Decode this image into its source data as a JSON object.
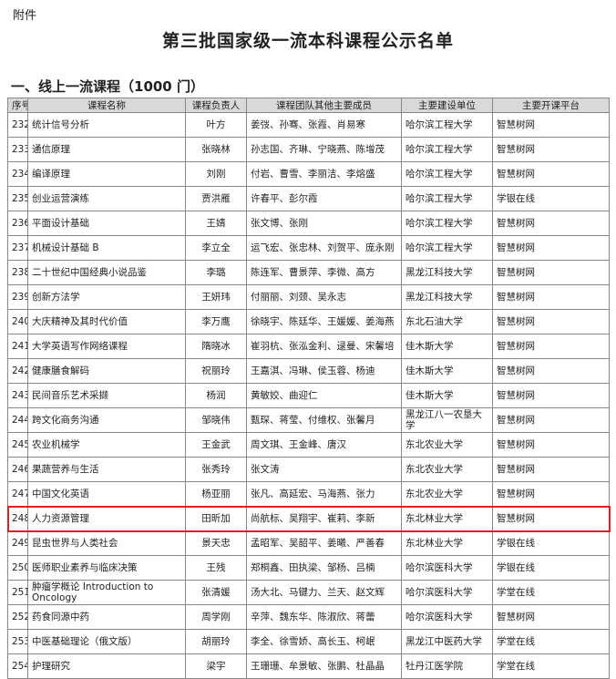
{
  "header": {
    "attachment": "附件",
    "title": "第三批国家级一流本科课程公示名单",
    "section": "一、线上一流课程（1000 门）"
  },
  "table": {
    "columns": [
      "序号",
      "课程名称",
      "课程负责人",
      "课程团队其他主要成员",
      "主要建设单位",
      "主要开课平台"
    ],
    "rows": [
      [
        "232",
        "统计信号分析",
        "叶方",
        "姜弢、孙骞、张霞、肖易寒",
        "哈尔滨工程大学",
        "智慧树网"
      ],
      [
        "233",
        "通信原理",
        "张晓林",
        "孙志国、齐琳、宁晓燕、陈增茂",
        "哈尔滨工程大学",
        "智慧树网"
      ],
      [
        "234",
        "编译原理",
        "刘刚",
        "付岩、曹雪、李丽洁、李熔盛",
        "哈尔滨工程大学",
        "智慧树网"
      ],
      [
        "235",
        "创业运营演练",
        "贾洪雁",
        "许春平、彭尔霞",
        "哈尔滨工程大学",
        "学银在线"
      ],
      [
        "236",
        "平面设计基础",
        "王婧",
        "张文博、张刚",
        "哈尔滨工程大学",
        "智慧树网"
      ],
      [
        "237",
        "机械设计基础 B",
        "李立全",
        "运飞宏、张忠林、刘贺平、庞永刚",
        "哈尔滨工程大学",
        "智慧树网"
      ],
      [
        "238",
        "二十世纪中国经典小说品鉴",
        "李璐",
        "陈连军、曹景萍、李微、高方",
        "黑龙江科技大学",
        "智慧树网"
      ],
      [
        "239",
        "创新方法学",
        "王妍玮",
        "付丽丽、刘颈、吴永志",
        "黑龙江科技大学",
        "智慧树网"
      ],
      [
        "240",
        "大庆精神及其时代价值",
        "李万鹰",
        "徐晓宇、陈廷华、王媛媛、姜海燕",
        "东北石油大学",
        "智慧树网"
      ],
      [
        "241",
        "大学英语写作网络课程",
        "隋晓冰",
        "崔羽杭、张泓金利、逯曼、宋馨培",
        "佳木斯大学",
        "智慧树网"
      ],
      [
        "242",
        "健康膳食解码",
        "祝丽玲",
        "王嘉淇、冯琳、侯玉蓉、杨迪",
        "佳木斯大学",
        "智慧树网"
      ],
      [
        "243",
        "民间音乐艺术采撷",
        "杨润",
        "黄敏姣、曲迎仁",
        "佳木斯大学",
        "智慧树网"
      ],
      [
        "244",
        "跨文化商务沟通",
        "邹晓伟",
        "甄琛、蒋莹、付维权、张馨月",
        "黑龙江八一农垦大学",
        "智慧树网"
      ],
      [
        "245",
        "农业机械学",
        "王金武",
        "周文琪、王金峰、唐汉",
        "东北农业大学",
        "智慧树网"
      ],
      [
        "246",
        "果蔬营养与生活",
        "张秀玲",
        "张文涛",
        "东北农业大学",
        "智慧树网"
      ],
      [
        "247",
        "中国文化英语",
        "杨亚丽",
        "张凡、高延宏、马海燕、张力",
        "东北农业大学",
        "智慧树网"
      ],
      [
        "248",
        "人力资源管理",
        "田昕加",
        "尚航标、吴翔宇、崔莉、李新",
        "东北林业大学",
        "智慧树网"
      ],
      [
        "249",
        "昆虫世界与人类社会",
        "景天忠",
        "孟昭军、吴韶平、姜曦、严善春",
        "东北林业大学",
        "学银在线"
      ],
      [
        "250",
        "医师职业素养与临床决策",
        "王残",
        "郑桐鑫、田执梁、邹杨、吕楠",
        "哈尔滨医科大学",
        "学银在线"
      ],
      [
        "251",
        "肿瘤学概论 Introduction to Oncology",
        "张清媛",
        "汤大北、马键力、兰天、赵文辉",
        "哈尔滨医科大学",
        "学堂在线"
      ],
      [
        "252",
        "药食同源中药",
        "周学刚",
        "辛萍、魏东华、陈淑欣、蒋蕾",
        "哈尔滨医科大学",
        "智慧树网"
      ],
      [
        "253",
        "中医基础理论（俄文版）",
        "胡丽玲",
        "李全、徐雪娇、高长玉、柯岷",
        "黑龙江中医药大学",
        "学堂在线"
      ],
      [
        "254",
        "护理研究",
        "梁宇",
        "王珊珊、牟景敏、张鹏、杜晶晶",
        "牡丹江医学院",
        "学堂在线"
      ]
    ],
    "highlighted_rows": [
      16
    ]
  }
}
